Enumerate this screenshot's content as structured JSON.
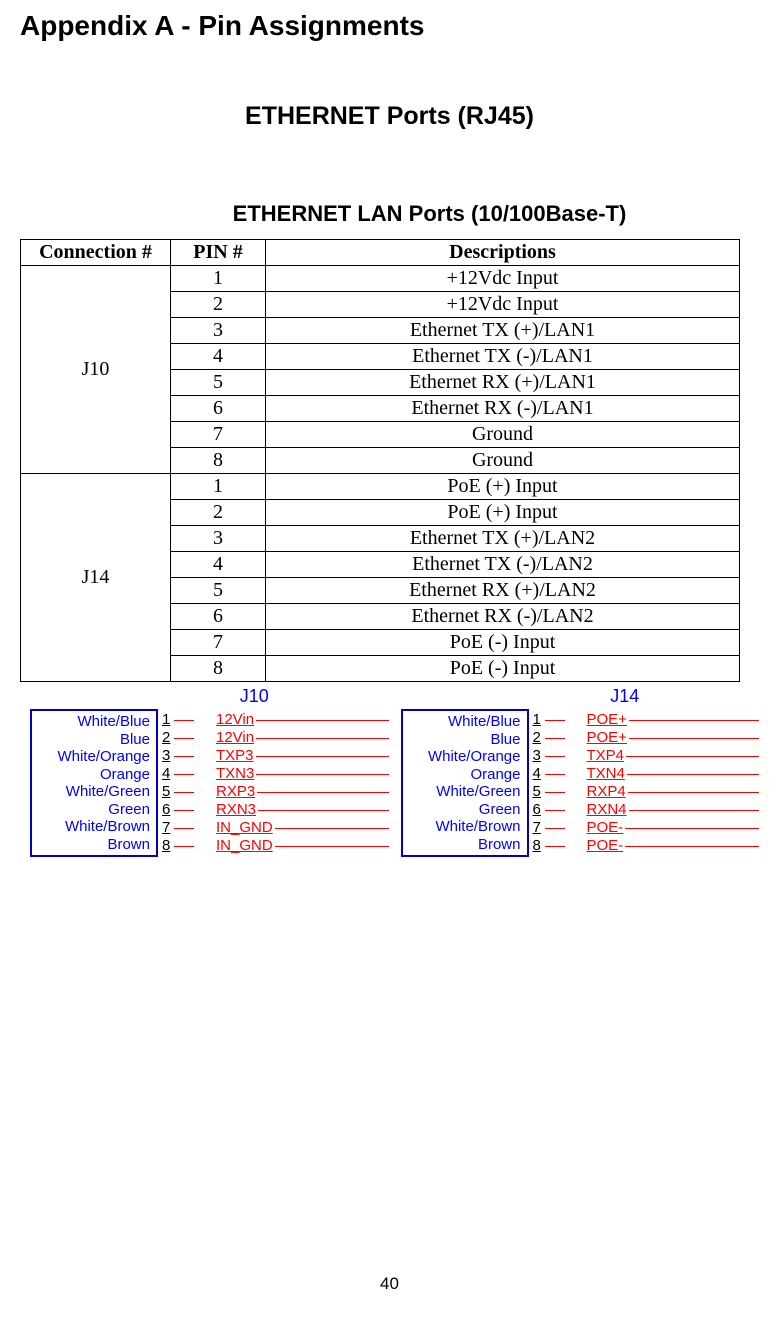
{
  "title": "Appendix A - Pin Assignments",
  "subtitle": "ETHERNET Ports (RJ45)",
  "section": "ETHERNET LAN Ports (10/100Base-T)",
  "page_number": "40",
  "table": {
    "headers": [
      "Connection #",
      "PIN #",
      "Descriptions"
    ],
    "groups": [
      {
        "conn": "J10",
        "rows": [
          {
            "pin": "1",
            "desc": "+12Vdc Input"
          },
          {
            "pin": "2",
            "desc": "+12Vdc Input"
          },
          {
            "pin": "3",
            "desc": "Ethernet TX (+)/LAN1"
          },
          {
            "pin": "4",
            "desc": "Ethernet TX (-)/LAN1"
          },
          {
            "pin": "5",
            "desc": "Ethernet RX (+)/LAN1"
          },
          {
            "pin": "6",
            "desc": "Ethernet RX (-)/LAN1"
          },
          {
            "pin": "7",
            "desc": "Ground"
          },
          {
            "pin": "8",
            "desc": "Ground"
          }
        ]
      },
      {
        "conn": "J14",
        "rows": [
          {
            "pin": "1",
            "desc": "PoE (+) Input"
          },
          {
            "pin": "2",
            "desc": "PoE (+) Input"
          },
          {
            "pin": "3",
            "desc": "Ethernet TX (+)/LAN2"
          },
          {
            "pin": "4",
            "desc": "Ethernet TX (-)/LAN2"
          },
          {
            "pin": "5",
            "desc": "Ethernet RX (+)/LAN2"
          },
          {
            "pin": "6",
            "desc": "Ethernet RX (-)/LAN2"
          },
          {
            "pin": "7",
            "desc": "PoE (-) Input"
          },
          {
            "pin": "8",
            "desc": "PoE (-) Input"
          }
        ]
      }
    ]
  },
  "wire_colors": [
    "White/Blue",
    "Blue",
    "White/Orange",
    "Orange",
    "White/Green",
    "Green",
    "White/Brown",
    "Brown"
  ],
  "pin_numbers": [
    "1",
    "2",
    "3",
    "4",
    "5",
    "6",
    "7",
    "8"
  ],
  "diagrams": [
    {
      "label": "J10",
      "signals": [
        "12Vin",
        "12Vin",
        "TXP3",
        "TXN3",
        "RXP3",
        "RXN3",
        "IN_GND",
        "IN_GND"
      ]
    },
    {
      "label": "J14",
      "signals": [
        "POE+",
        "POE+",
        "TXP4",
        "TXN4",
        "RXP4",
        "RXN4",
        "POE-",
        "POE-"
      ]
    }
  ],
  "colors": {
    "wire_text": "#0000ff",
    "wire_border": "#0000c0",
    "signal": "#ff0000",
    "text": "#000000",
    "background": "#ffffff"
  }
}
